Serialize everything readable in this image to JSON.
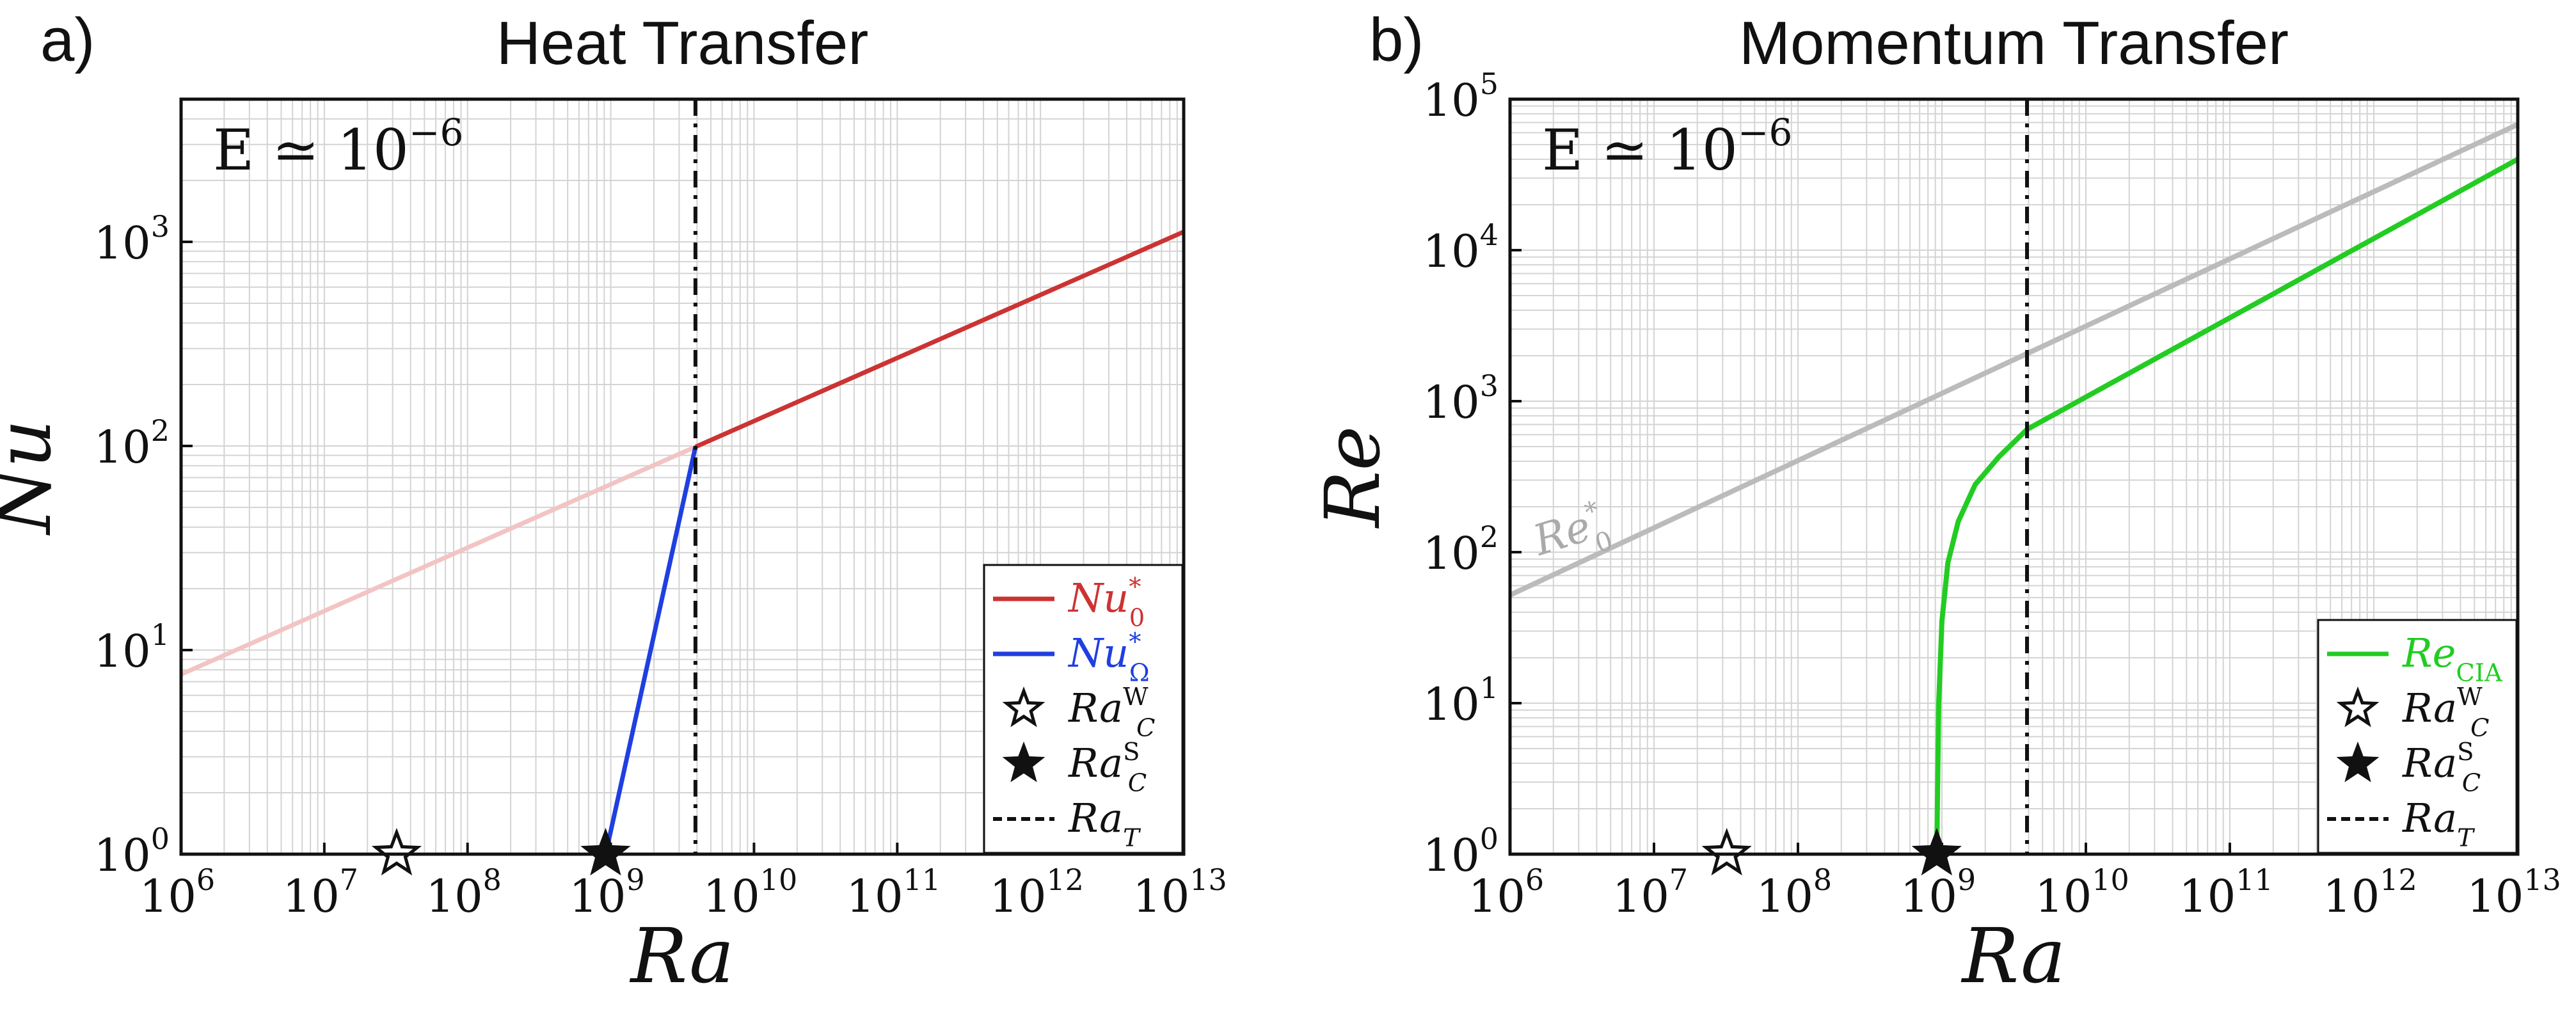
{
  "chart_data": [
    {
      "type": "line",
      "panel_label": "a)",
      "title": "Heat Transfer",
      "xlabel": "Ra",
      "ylabel": "Nu",
      "xscale": "log",
      "yscale": "log",
      "xlim": [
        1000000.0,
        10000000000000.0
      ],
      "ylim": [
        1,
        5000
      ],
      "grid": true,
      "legend_position": "bottom-right",
      "annotation": {
        "text": "E ≃ 10",
        "exponent": "−6"
      },
      "x_ticks": [
        {
          "base": "10",
          "exp": "6",
          "value": 1000000.0
        },
        {
          "base": "10",
          "exp": "7",
          "value": 10000000.0
        },
        {
          "base": "10",
          "exp": "8",
          "value": 100000000.0
        },
        {
          "base": "10",
          "exp": "9",
          "value": 1000000000.0
        },
        {
          "base": "10",
          "exp": "10",
          "value": 10000000000.0
        },
        {
          "base": "10",
          "exp": "11",
          "value": 100000000000.0
        },
        {
          "base": "10",
          "exp": "12",
          "value": 1000000000000.0
        },
        {
          "base": "10",
          "exp": "13",
          "value": 10000000000000.0
        }
      ],
      "y_ticks": [
        {
          "base": "10",
          "exp": "0",
          "value": 1
        },
        {
          "base": "10",
          "exp": "1",
          "value": 10
        },
        {
          "base": "10",
          "exp": "2",
          "value": 100
        },
        {
          "base": "10",
          "exp": "3",
          "value": 1000
        }
      ],
      "series": [
        {
          "name": "Nu_0^* (faded, Ra < Ra_T)",
          "color": "#f2c4c4",
          "width": 7,
          "dash": "",
          "x": [
            1000000.0,
            3900000000.0
          ],
          "y": [
            7.6,
            99
          ]
        },
        {
          "name": "Nu_0^*",
          "color": "#cc3333",
          "width": 7,
          "dash": "",
          "x": [
            3900000000.0,
            10000000000000.0
          ],
          "y": [
            99,
            1120
          ]
        },
        {
          "name": "Nu_Ω^*",
          "color": "#1f3fe0",
          "width": 7,
          "dash": "",
          "x": [
            920000000.0,
            1000000000.0,
            3900000000.0
          ],
          "y": [
            1,
            1.3,
            99
          ]
        }
      ],
      "vlines": [
        {
          "x": 3900000000.0,
          "label": "Ra_T",
          "color": "#111111"
        }
      ],
      "markers": [
        {
          "name": "Ra_C^W",
          "x": 32000000.0,
          "y": 1,
          "filled": false
        },
        {
          "name": "Ra_C^S",
          "x": 920000000.0,
          "y": 1,
          "filled": true
        }
      ],
      "legend": [
        {
          "kind": "line",
          "color": "#cc3333",
          "base": "Nu",
          "sub": "0",
          "sup": "*"
        },
        {
          "kind": "line",
          "color": "#1f3fe0",
          "base": "Nu",
          "sub": "Ω",
          "sup": "*"
        },
        {
          "kind": "star-open",
          "color": "#111111",
          "base": "Ra",
          "sub": "C",
          "sup": "W"
        },
        {
          "kind": "star-filled",
          "color": "#111111",
          "base": "Ra",
          "sub": "C",
          "sup": "S"
        },
        {
          "kind": "dash",
          "color": "#111111",
          "base": "Ra",
          "sub": "T",
          "sup": ""
        }
      ],
      "inline_labels": []
    },
    {
      "type": "line",
      "panel_label": "b)",
      "title": "Momentum Transfer",
      "xlabel": "Ra",
      "ylabel": "Re",
      "xscale": "log",
      "yscale": "log",
      "xlim": [
        1000000.0,
        10000000000000.0
      ],
      "ylim": [
        1,
        100000
      ],
      "grid": true,
      "legend_position": "bottom-right",
      "annotation": {
        "text": "E ≃ 10",
        "exponent": "−6"
      },
      "x_ticks": [
        {
          "base": "10",
          "exp": "6",
          "value": 1000000.0
        },
        {
          "base": "10",
          "exp": "7",
          "value": 10000000.0
        },
        {
          "base": "10",
          "exp": "8",
          "value": 100000000.0
        },
        {
          "base": "10",
          "exp": "9",
          "value": 1000000000.0
        },
        {
          "base": "10",
          "exp": "10",
          "value": 10000000000.0
        },
        {
          "base": "10",
          "exp": "11",
          "value": 100000000000.0
        },
        {
          "base": "10",
          "exp": "12",
          "value": 1000000000000.0
        },
        {
          "base": "10",
          "exp": "13",
          "value": 10000000000000.0
        }
      ],
      "y_ticks": [
        {
          "base": "10",
          "exp": "0",
          "value": 1
        },
        {
          "base": "10",
          "exp": "1",
          "value": 10
        },
        {
          "base": "10",
          "exp": "2",
          "value": 100
        },
        {
          "base": "10",
          "exp": "3",
          "value": 1000
        },
        {
          "base": "10",
          "exp": "4",
          "value": 10000
        },
        {
          "base": "10",
          "exp": "5",
          "value": 100000
        }
      ],
      "series": [
        {
          "name": "Re_0^*",
          "color": "#bbbbbb",
          "width": 8,
          "dash": "",
          "x": [
            1000000.0,
            10000000000000.0
          ],
          "y": [
            52,
            68000
          ]
        },
        {
          "name": "Re_CIA",
          "color": "#22cc22",
          "width": 8,
          "dash": "",
          "x": [
            920000000.0,
            950000000.0,
            1000000000.0,
            1100000000.0,
            1300000000.0,
            1700000000.0,
            2500000000.0,
            3900000000.0,
            10000000000000.0
          ],
          "y": [
            1,
            10,
            35,
            85,
            160,
            280,
            430,
            650,
            40000
          ]
        }
      ],
      "vlines": [
        {
          "x": 3900000000.0,
          "label": "Ra_T",
          "color": "#111111"
        }
      ],
      "markers": [
        {
          "name": "Ra_C^W",
          "x": 32000000.0,
          "y": 1,
          "filled": false
        },
        {
          "name": "Ra_C^S",
          "x": 920000000.0,
          "y": 1,
          "filled": true
        }
      ],
      "legend": [
        {
          "kind": "line",
          "color": "#22cc22",
          "base": "Re",
          "sub": "CIA",
          "sup": ""
        },
        {
          "kind": "star-open",
          "color": "#111111",
          "base": "Ra",
          "sub": "C",
          "sup": "W"
        },
        {
          "kind": "star-filled",
          "color": "#111111",
          "base": "Ra",
          "sub": "C",
          "sup": "S"
        },
        {
          "kind": "dash",
          "color": "#111111",
          "base": "Ra",
          "sub": "T",
          "sup": ""
        }
      ],
      "inline_labels": [
        {
          "base": "Re",
          "sub": "0",
          "sup": "*",
          "color": "#aaaaaa",
          "x": 1600000.0,
          "y": 95,
          "angle_deg": -17.3
        }
      ]
    }
  ]
}
